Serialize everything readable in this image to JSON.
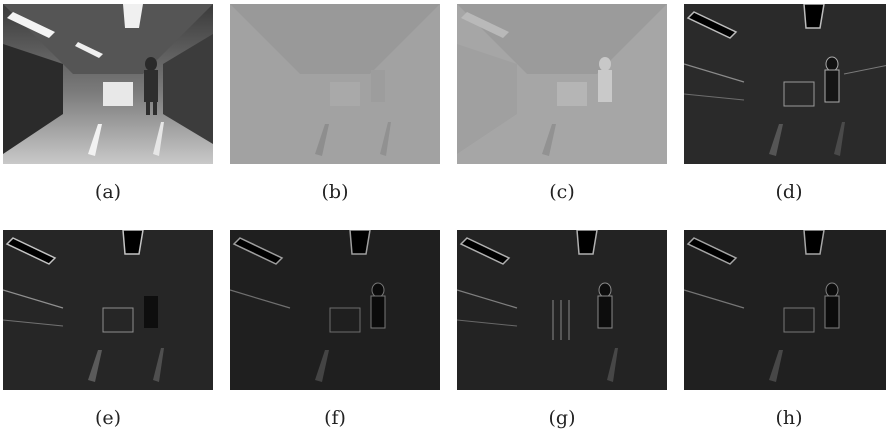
{
  "panels": [
    {
      "caption": "(a)",
      "variant": "photo"
    },
    {
      "caption": "(b)",
      "variant": "map-flat"
    },
    {
      "caption": "(c)",
      "variant": "map-soft"
    },
    {
      "caption": "(d)",
      "variant": "edge"
    },
    {
      "caption": "(e)",
      "variant": "edge"
    },
    {
      "caption": "(f)",
      "variant": "edge-dark"
    },
    {
      "caption": "(g)",
      "variant": "edge"
    },
    {
      "caption": "(h)",
      "variant": "edge-dark"
    }
  ]
}
